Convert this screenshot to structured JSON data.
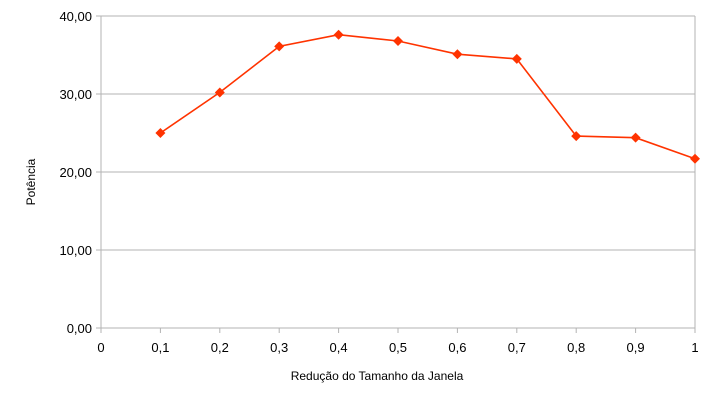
{
  "chart_data": {
    "type": "line",
    "title": "",
    "xlabel": "Redução do Tamanho da Janela",
    "ylabel": "Potência",
    "xlim": [
      0,
      1
    ],
    "ylim": [
      0,
      40
    ],
    "x_ticks": [
      "0",
      "0,1",
      "0,2",
      "0,3",
      "0,4",
      "0,5",
      "0,6",
      "0,7",
      "0,8",
      "0,9",
      "1"
    ],
    "y_ticks": [
      "0,00",
      "10,00",
      "20,00",
      "30,00",
      "40,00"
    ],
    "grid": "horizontal",
    "legend": "none",
    "series": [
      {
        "color": "#ff3300",
        "marker_color": "#ff3300",
        "marker": "diamond",
        "x": [
          0.1,
          0.2,
          0.3,
          0.4,
          0.5,
          0.6,
          0.7,
          0.8,
          0.9,
          1.0
        ],
        "y": [
          25.0,
          30.2,
          36.1,
          37.6,
          36.8,
          35.1,
          34.5,
          24.6,
          24.4,
          21.7
        ]
      }
    ]
  }
}
